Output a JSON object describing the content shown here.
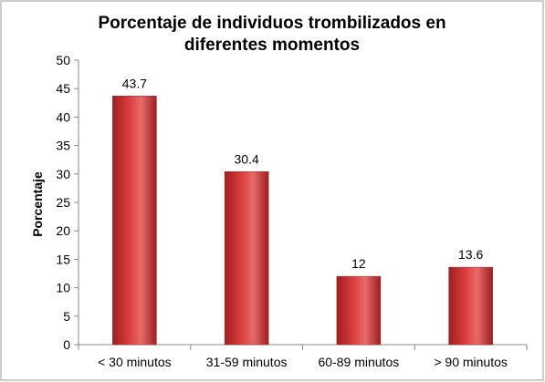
{
  "chart_data": {
    "type": "bar",
    "title_lines": [
      "Porcentaje de individuos trombilizados en",
      "diferentes momentos"
    ],
    "xlabel": "",
    "ylabel": "Porcentaje",
    "categories": [
      "< 30 minutos",
      "31-59 minutos",
      "60-89 minutos",
      "> 90 minutos"
    ],
    "values": [
      43.7,
      30.4,
      12,
      13.6
    ],
    "data_labels": [
      "43.7",
      "30.4",
      "12",
      "13.6"
    ],
    "ylim": [
      0,
      50
    ],
    "yticks": [
      0,
      5,
      10,
      15,
      20,
      25,
      30,
      35,
      40,
      45,
      50
    ],
    "grid": false,
    "legend": "none",
    "colors": {
      "bar_dark": "#9c1f1f",
      "bar_mid": "#d83a3a",
      "bar_light": "#e86a6a",
      "axis": "#888888",
      "border": "#9a9a9a"
    }
  }
}
